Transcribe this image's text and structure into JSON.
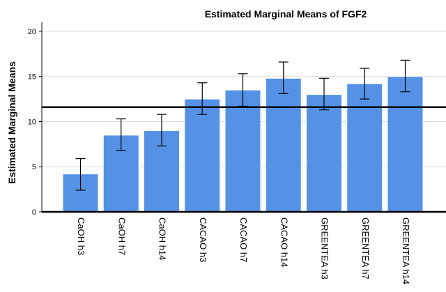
{
  "chart_data": {
    "type": "bar",
    "title": "Estimated Marginal Means of FGF2",
    "xlabel": "",
    "ylabel": "Estimated Marginal Means",
    "categories": [
      "CaOH h3",
      "CaOH h7",
      "CaOH h14",
      "CACAO h3",
      "CACAO h7",
      "CACAO h14",
      "GREENTEA h3",
      "GREENTEA h7",
      "GREENTEA h14"
    ],
    "values": [
      4.2,
      8.5,
      9.0,
      12.5,
      13.5,
      14.8,
      13.0,
      14.2,
      15.0
    ],
    "error_low": [
      2.4,
      6.8,
      7.3,
      10.8,
      11.7,
      13.1,
      11.3,
      12.5,
      13.3
    ],
    "error_high": [
      5.9,
      10.3,
      10.8,
      14.3,
      15.3,
      16.6,
      14.8,
      15.9,
      16.8
    ],
    "reference_line": 11.6,
    "ylim": [
      0,
      21
    ],
    "yticks": [
      0,
      5,
      10,
      15,
      20
    ],
    "grid": true,
    "colors": {
      "bar": "#5592e6",
      "bar_edge": "#ffffff",
      "grid": "#d9d9d9",
      "axis": "#000000",
      "error": "#000000"
    }
  }
}
